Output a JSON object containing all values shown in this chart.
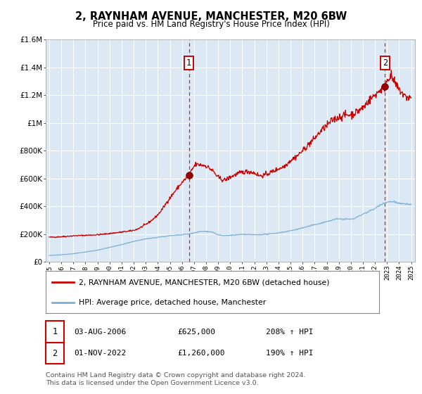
{
  "title": "2, RAYNHAM AVENUE, MANCHESTER, M20 6BW",
  "subtitle": "Price paid vs. HM Land Registry's House Price Index (HPI)",
  "background_color": "#ffffff",
  "plot_bg_color": "#dce9f5",
  "red_line_color": "#cc0000",
  "blue_line_color": "#7aafd4",
  "ylim": [
    0,
    1600000
  ],
  "yticks": [
    0,
    200000,
    400000,
    600000,
    800000,
    1000000,
    1200000,
    1400000,
    1600000
  ],
  "ytick_labels": [
    "£0",
    "£200K",
    "£400K",
    "£600K",
    "£800K",
    "£1M",
    "£1.2M",
    "£1.4M",
    "£1.6M"
  ],
  "xmin_year": 1995,
  "xmax_year": 2025,
  "xticks": [
    1995,
    1996,
    1997,
    1998,
    1999,
    2000,
    2001,
    2002,
    2003,
    2004,
    2005,
    2006,
    2007,
    2008,
    2009,
    2010,
    2011,
    2012,
    2013,
    2014,
    2015,
    2016,
    2017,
    2018,
    2019,
    2020,
    2021,
    2022,
    2023,
    2024,
    2025
  ],
  "sale1_x": 2006.58,
  "sale1_y": 625000,
  "sale1_label": "1",
  "sale2_x": 2022.83,
  "sale2_y": 1260000,
  "sale2_label": "2",
  "legend_line1": "2, RAYNHAM AVENUE, MANCHESTER, M20 6BW (detached house)",
  "legend_line2": "HPI: Average price, detached house, Manchester",
  "table_row1_num": "1",
  "table_row1_date": "03-AUG-2006",
  "table_row1_price": "£625,000",
  "table_row1_hpi": "208% ↑ HPI",
  "table_row2_num": "2",
  "table_row2_date": "01-NOV-2022",
  "table_row2_price": "£1,260,000",
  "table_row2_hpi": "190% ↑ HPI",
  "footer": "Contains HM Land Registry data © Crown copyright and database right 2024.\nThis data is licensed under the Open Government Licence v3.0."
}
